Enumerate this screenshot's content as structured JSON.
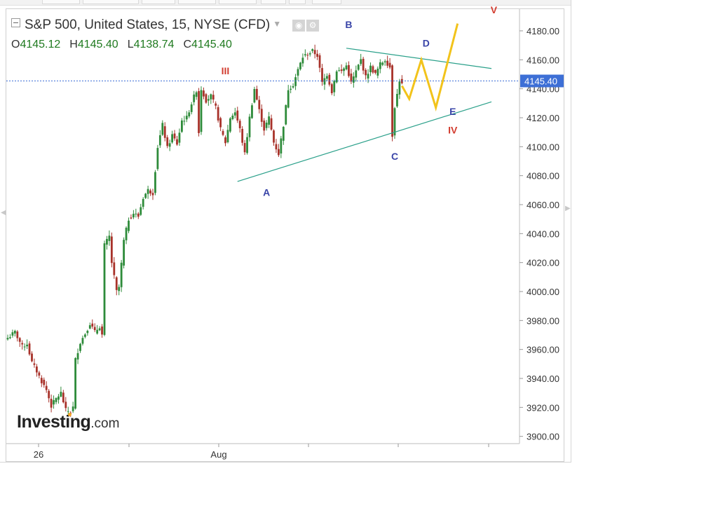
{
  "header": {
    "title": "S&P 500, United States, 15, NYSE (CFD)",
    "ohlc": {
      "open": "4145.12",
      "high": "4145.40",
      "low": "4138.74",
      "close": "4145.40"
    },
    "ohlc_prefixes": {
      "open": "O",
      "high": "H",
      "low": "L",
      "close": "C"
    }
  },
  "logo": {
    "brand": "Investing",
    "suffix": ".com"
  },
  "colors": {
    "up_candle": "#2e8b3a",
    "down_candle": "#a8322a",
    "trendline": "#2aa08a",
    "projection": "#f2c31b",
    "current_price_line": "#3d6fd6",
    "price_badge": "#3d6fd6",
    "wave_red": "#d23c2f",
    "wave_blue": "#3a45a8"
  },
  "chart_data": {
    "type": "candlestick",
    "y_axis": {
      "range": [
        3895,
        4195
      ],
      "ticks": [
        3900,
        3920,
        3940,
        3960,
        3980,
        4000,
        4020,
        4040,
        4060,
        4080,
        4100,
        4120,
        4140,
        4160,
        4180
      ],
      "tick_labels": [
        "3900.00",
        "3920.00",
        "3940.00",
        "3960.00",
        "3980.00",
        "4000.00",
        "4020.00",
        "4040.00",
        "4060.00",
        "4080.00",
        "4100.00",
        "4120.00",
        "4140.00",
        "4160.00",
        "4180.00"
      ]
    },
    "x_axis": {
      "labels": [
        "26",
        "Aug"
      ]
    },
    "current_price": 4145.4,
    "current_price_label": "4145.40",
    "path": [
      [
        0,
        3968
      ],
      [
        3,
        3972
      ],
      [
        6,
        3962
      ],
      [
        8,
        3964
      ],
      [
        10,
        3951
      ],
      [
        12,
        3945
      ],
      [
        14,
        3938
      ],
      [
        16,
        3932
      ],
      [
        18,
        3921
      ],
      [
        20,
        3926
      ],
      [
        22,
        3930
      ],
      [
        24,
        3918
      ],
      [
        26,
        3917
      ],
      [
        27,
        3920
      ],
      [
        28,
        3953
      ],
      [
        30,
        3965
      ],
      [
        32,
        3971
      ],
      [
        34,
        3978
      ],
      [
        36,
        3972
      ],
      [
        38,
        3976
      ],
      [
        39,
        3970
      ],
      [
        40,
        4032
      ],
      [
        42,
        4038
      ],
      [
        43,
        4020
      ],
      [
        44,
        4010
      ],
      [
        45,
        4000
      ],
      [
        46,
        4003
      ],
      [
        48,
        4035
      ],
      [
        50,
        4050
      ],
      [
        52,
        4054
      ],
      [
        54,
        4052
      ],
      [
        56,
        4065
      ],
      [
        58,
        4070
      ],
      [
        60,
        4068
      ],
      [
        62,
        4100
      ],
      [
        64,
        4115
      ],
      [
        66,
        4099
      ],
      [
        68,
        4108
      ],
      [
        70,
        4102
      ],
      [
        72,
        4118
      ],
      [
        74,
        4120
      ],
      [
        76,
        4130
      ],
      [
        78,
        4139
      ],
      [
        79,
        4110
      ],
      [
        80,
        4140
      ],
      [
        82,
        4132
      ],
      [
        84,
        4135
      ],
      [
        86,
        4127
      ],
      [
        88,
        4112
      ],
      [
        90,
        4103
      ],
      [
        92,
        4120
      ],
      [
        94,
        4124
      ],
      [
        96,
        4112
      ],
      [
        98,
        4095
      ],
      [
        100,
        4120
      ],
      [
        102,
        4140
      ],
      [
        104,
        4125
      ],
      [
        106,
        4112
      ],
      [
        108,
        4120
      ],
      [
        110,
        4103
      ],
      [
        112,
        4095
      ],
      [
        114,
        4115
      ],
      [
        116,
        4140
      ],
      [
        118,
        4143
      ],
      [
        120,
        4153
      ],
      [
        122,
        4162
      ],
      [
        124,
        4164
      ],
      [
        126,
        4166
      ],
      [
        128,
        4163
      ],
      [
        130,
        4144
      ],
      [
        132,
        4150
      ],
      [
        134,
        4138
      ],
      [
        136,
        4153
      ],
      [
        138,
        4152
      ],
      [
        140,
        4156
      ],
      [
        142,
        4144
      ],
      [
        144,
        4152
      ],
      [
        146,
        4160
      ],
      [
        148,
        4148
      ],
      [
        150,
        4155
      ],
      [
        152,
        4150
      ],
      [
        154,
        4157
      ],
      [
        156,
        4160
      ],
      [
        158,
        4155
      ],
      [
        159,
        4108
      ],
      [
        160,
        4128
      ],
      [
        161,
        4136
      ],
      [
        162,
        4146
      ],
      [
        163,
        4143
      ]
    ],
    "waves": [
      {
        "label": "III",
        "role": "red"
      },
      {
        "label": "IV",
        "role": "red"
      },
      {
        "label": "V",
        "role": "red"
      },
      {
        "label": "A",
        "role": "blue"
      },
      {
        "label": "B",
        "role": "blue"
      },
      {
        "label": "C",
        "role": "blue"
      },
      {
        "label": "D",
        "role": "blue"
      },
      {
        "label": "E",
        "role": "blue"
      }
    ],
    "trendlines": {
      "upper": {
        "from": [
          140,
          4168
        ],
        "to": [
          200,
          4154
        ]
      },
      "lower": {
        "from": [
          95,
          4076
        ],
        "to": [
          200,
          4131
        ]
      }
    },
    "projection_path": [
      [
        163,
        4142
      ],
      [
        166,
        4133
      ],
      [
        171,
        4160
      ],
      [
        177,
        4127
      ],
      [
        186,
        4185
      ]
    ]
  }
}
